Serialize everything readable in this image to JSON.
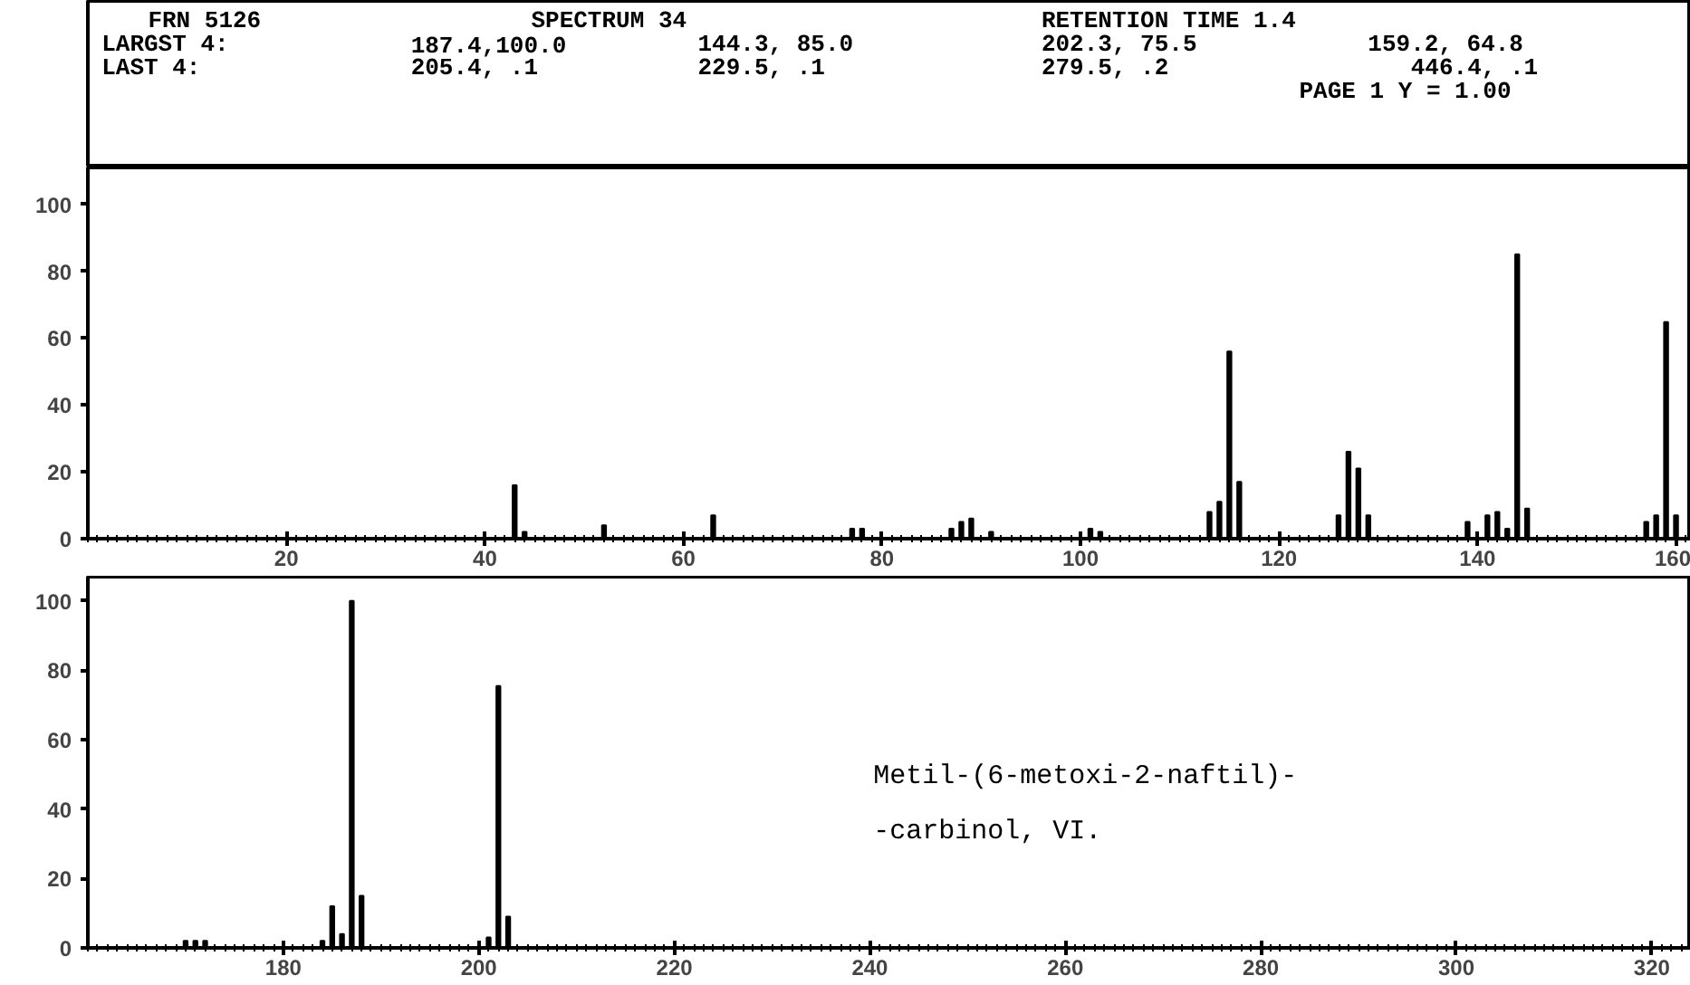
{
  "chart_data": [
    {
      "type": "bar",
      "color": "#000000",
      "annotations": [
        "FRN 5126",
        "SPECTRUM 34",
        "RETENTION TIME 1.4",
        "LARGST 4:",
        "187.4,100.0",
        "144.3, 85.0",
        "202.3, 75.5",
        "159.2, 64.8",
        "LAST 4:",
        "205.4, .1",
        "229.5, .1",
        "279.5, .2",
        "446.4, .1",
        "PAGE 1 Y = 1.00"
      ],
      "x": [
        43,
        44,
        52,
        63,
        77,
        78,
        87,
        88,
        89,
        91,
        101,
        102,
        113,
        114,
        115,
        116,
        126,
        127,
        128,
        129,
        139,
        141,
        142,
        143,
        144,
        145,
        157,
        158,
        159,
        160
      ],
      "values": [
        16,
        2,
        4,
        7,
        3,
        3,
        3,
        5,
        6,
        2,
        3,
        2,
        8,
        11,
        56,
        17,
        7,
        26,
        21,
        7,
        5,
        7,
        8,
        3,
        85,
        9,
        5,
        7,
        64.8,
        7
      ],
      "xlim": [
        0,
        161.5
      ],
      "xticks": [
        20,
        40,
        60,
        80,
        100,
        120,
        140,
        160
      ],
      "ylim": [
        0,
        111
      ],
      "yticks": [
        0,
        20,
        40,
        60,
        80,
        100
      ]
    },
    {
      "type": "bar",
      "color": "#000000",
      "annotations": [
        "Metil-(6-metoxi-2-naftil)-",
        "-carbinol, VI."
      ],
      "x": [
        170,
        171,
        172,
        184,
        185,
        186,
        187,
        188,
        201,
        202,
        203
      ],
      "values": [
        2,
        2,
        2,
        2,
        12,
        4,
        100,
        15,
        3,
        75.5,
        9
      ],
      "xlim": [
        160,
        324
      ],
      "xticks": [
        180,
        200,
        220,
        240,
        260,
        280,
        300,
        320
      ],
      "ylim": [
        0,
        107
      ],
      "yticks": [
        0,
        20,
        40,
        60,
        80,
        100
      ]
    }
  ]
}
